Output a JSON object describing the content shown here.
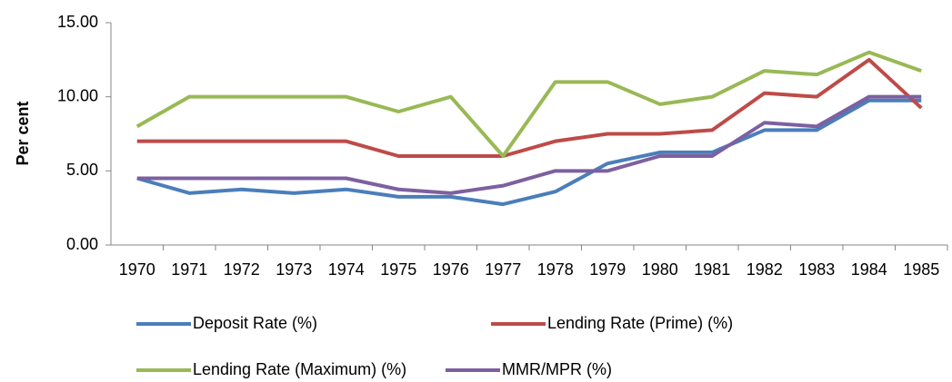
{
  "chart_data": {
    "type": "line",
    "y_label": "Per cent",
    "categories": [
      "1970",
      "1971",
      "1972",
      "1973",
      "1974",
      "1975",
      "1976",
      "1977",
      "1978",
      "1979",
      "1980",
      "1981",
      "1982",
      "1983",
      "1984",
      "1985"
    ],
    "ylim": [
      0,
      15
    ],
    "yticks": [
      {
        "value": 0,
        "label": "0.00"
      },
      {
        "value": 5,
        "label": "5.00"
      },
      {
        "value": 10,
        "label": "10.00"
      },
      {
        "value": 15,
        "label": "15.00"
      }
    ],
    "grid": false,
    "legend": "bottom",
    "series": [
      {
        "name": "Deposit Rate (%)",
        "color": "#4a7ebb",
        "values": [
          4.5,
          3.5,
          3.75,
          3.5,
          3.75,
          3.25,
          3.25,
          2.75,
          3.6,
          5.5,
          6.25,
          6.25,
          7.75,
          7.75,
          9.75,
          9.75
        ]
      },
      {
        "name": "Lending Rate (Prime) (%)",
        "color": "#be4b48",
        "values": [
          7,
          7,
          7,
          7,
          7,
          6,
          6,
          6,
          7,
          7.5,
          7.5,
          7.75,
          10.25,
          10,
          12.5,
          9.25
        ]
      },
      {
        "name": "Lending Rate (Maximum) (%)",
        "color": "#98b954",
        "values": [
          8,
          10,
          10,
          10,
          10,
          9,
          10,
          6,
          11,
          11,
          9.5,
          10,
          11.75,
          11.5,
          13,
          11.75
        ]
      },
      {
        "name": "MMR/MPR (%)",
        "color": "#7d60a0",
        "values": [
          4.5,
          4.5,
          4.5,
          4.5,
          4.5,
          3.75,
          3.5,
          4,
          5,
          5,
          6,
          6,
          8.25,
          8,
          10,
          10
        ]
      }
    ]
  }
}
